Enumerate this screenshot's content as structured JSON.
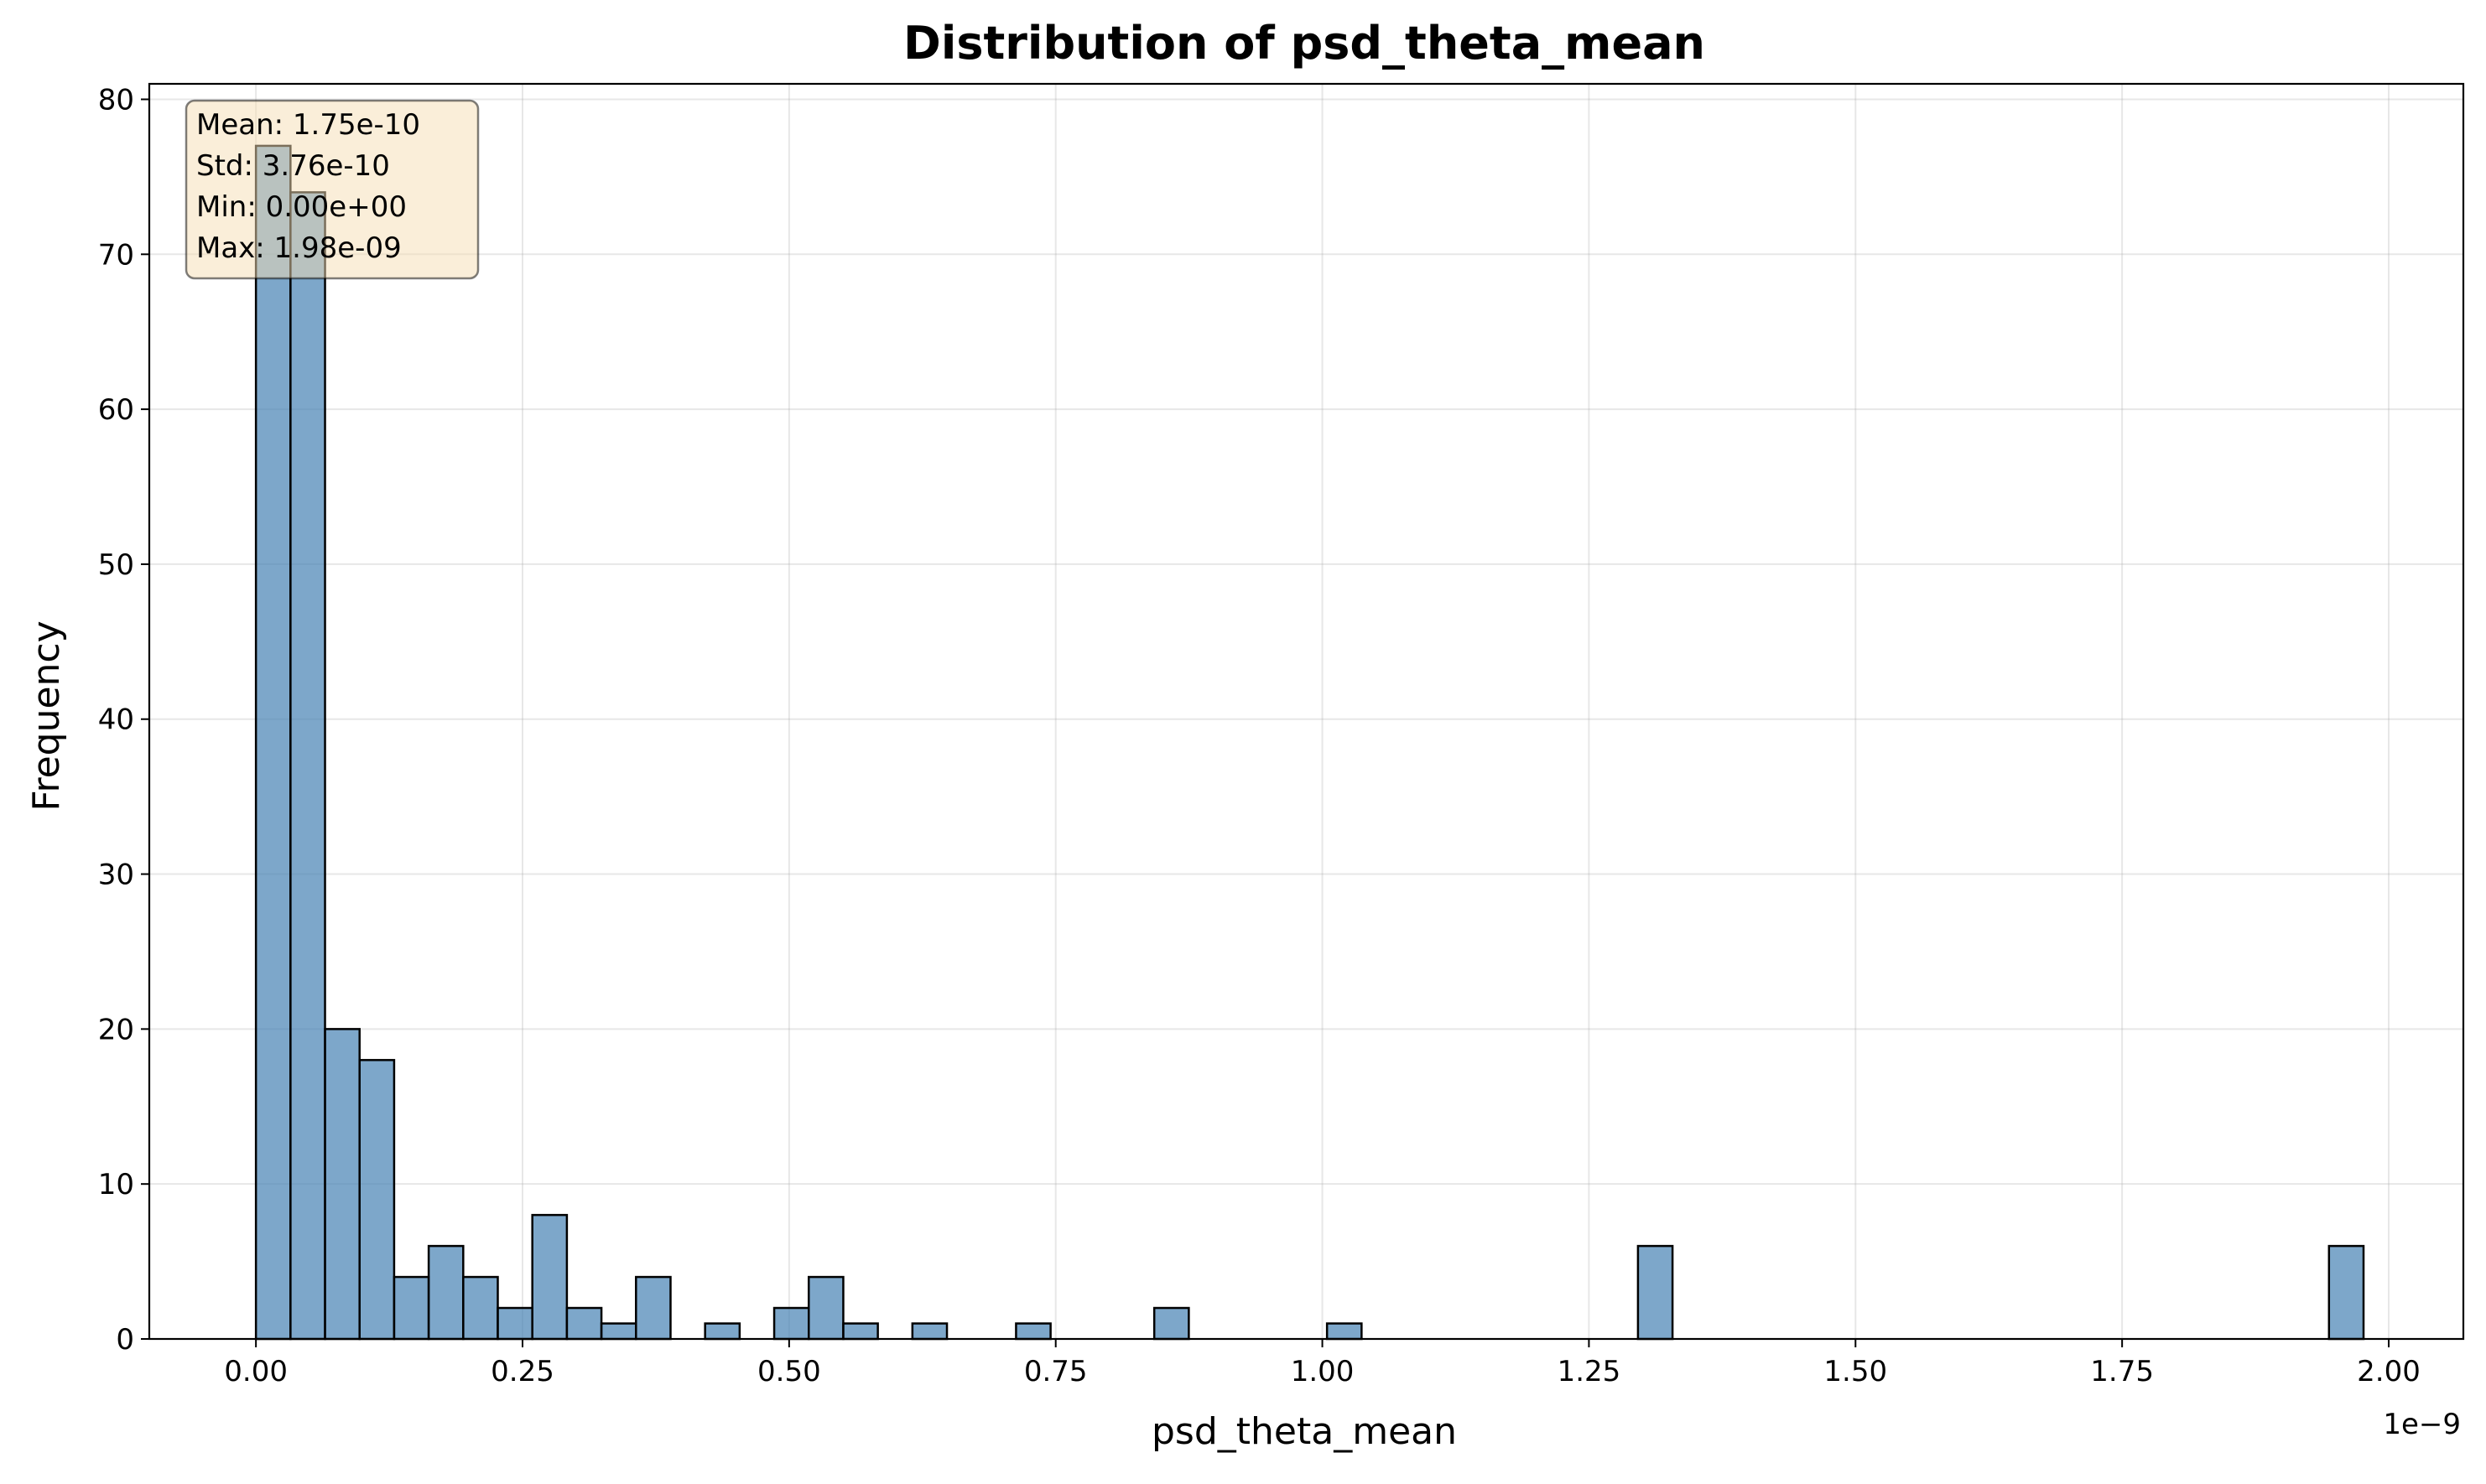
{
  "chart_data": {
    "type": "bar",
    "title": "Distribution of psd_theta_mean",
    "xlabel": "psd_theta_mean",
    "ylabel": "Frequency",
    "x_offset_label": "1e−9",
    "x_scale": 1e-09,
    "xlim": [
      -0.1,
      2.07
    ],
    "ylim": [
      0,
      81
    ],
    "grid": true,
    "bar_color": "#4682b4",
    "x_ticks": [
      {
        "value": 0.0,
        "label": "0.00"
      },
      {
        "value": 0.25,
        "label": "0.25"
      },
      {
        "value": 0.5,
        "label": "0.50"
      },
      {
        "value": 0.75,
        "label": "0.75"
      },
      {
        "value": 1.0,
        "label": "1.00"
      },
      {
        "value": 1.25,
        "label": "1.25"
      },
      {
        "value": 1.5,
        "label": "1.50"
      },
      {
        "value": 1.75,
        "label": "1.75"
      },
      {
        "value": 2.0,
        "label": "2.00"
      }
    ],
    "y_ticks": [
      {
        "value": 0,
        "label": "0"
      },
      {
        "value": 10,
        "label": "10"
      },
      {
        "value": 20,
        "label": "20"
      },
      {
        "value": 30,
        "label": "30"
      },
      {
        "value": 40,
        "label": "40"
      },
      {
        "value": 50,
        "label": "50"
      },
      {
        "value": 60,
        "label": "60"
      },
      {
        "value": 70,
        "label": "70"
      },
      {
        "value": 80,
        "label": "80"
      }
    ],
    "bin_width": 0.0324,
    "bins": [
      {
        "x_start": 0.0,
        "count": 77
      },
      {
        "x_start": 0.0324,
        "count": 74
      },
      {
        "x_start": 0.0648,
        "count": 20
      },
      {
        "x_start": 0.0972,
        "count": 18
      },
      {
        "x_start": 0.1296,
        "count": 4
      },
      {
        "x_start": 0.162,
        "count": 6
      },
      {
        "x_start": 0.1944,
        "count": 4
      },
      {
        "x_start": 0.2268,
        "count": 2
      },
      {
        "x_start": 0.2592,
        "count": 8
      },
      {
        "x_start": 0.2916,
        "count": 2
      },
      {
        "x_start": 0.324,
        "count": 1
      },
      {
        "x_start": 0.3564,
        "count": 4
      },
      {
        "x_start": 0.4212,
        "count": 1
      },
      {
        "x_start": 0.486,
        "count": 2
      },
      {
        "x_start": 0.5184,
        "count": 4
      },
      {
        "x_start": 0.5508,
        "count": 1
      },
      {
        "x_start": 0.6156,
        "count": 1
      },
      {
        "x_start": 0.7128,
        "count": 1
      },
      {
        "x_start": 0.8424,
        "count": 2
      },
      {
        "x_start": 1.0044,
        "count": 1
      },
      {
        "x_start": 1.296,
        "count": 6
      },
      {
        "x_start": 1.944,
        "count": 6
      }
    ],
    "stats_box": {
      "lines": [
        "Mean: 1.75e-10",
        "Std: 3.76e-10",
        "Min: 0.00e+00",
        "Max: 1.98e-09"
      ]
    }
  }
}
